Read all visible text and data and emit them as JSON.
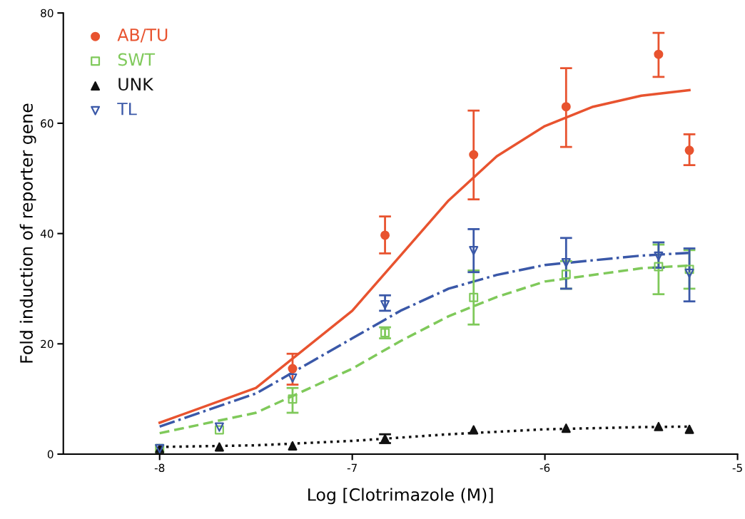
{
  "chart_data": {
    "type": "scatter",
    "xlabel": "Log [Clotrimazole (M)]",
    "ylabel": "Fold induction of reporter gene",
    "xlim": [
      -8.5,
      -5
    ],
    "xticks": [
      -8,
      -7,
      -6,
      -5
    ],
    "ylim": [
      0,
      80
    ],
    "yticks": [
      0,
      20,
      40,
      60,
      80
    ],
    "grid": false,
    "legend": "top left",
    "series": [
      {
        "name": "AB/TU",
        "color": "#e8532f",
        "marker": "circle",
        "x": [
          -7.31,
          -6.83,
          -6.37,
          -5.89,
          -5.41,
          -5.25
        ],
        "values": [
          15.5,
          39.7,
          54.3,
          63,
          72.5,
          55.1
        ],
        "errors": [
          [
            12.6,
            18.2
          ],
          [
            36.4,
            43.1
          ],
          [
            46.2,
            62.3
          ],
          [
            55.7,
            70
          ],
          [
            68.4,
            76.4
          ],
          [
            52.4,
            58
          ]
        ]
      },
      {
        "name": "SWT",
        "color": "#7fc95a",
        "marker": "square",
        "x": [
          -8,
          -7.69,
          -7.31,
          -6.83,
          -6.37,
          -5.89,
          -5.41,
          -5.25
        ],
        "values": [
          1,
          4.4,
          10,
          22,
          28.4,
          32.6,
          34,
          33.5
        ],
        "errors": [
          null,
          null,
          [
            7.5,
            12
          ],
          [
            21,
            23
          ],
          [
            23.5,
            33.3
          ],
          [
            30,
            35
          ],
          [
            29,
            38
          ],
          [
            30,
            37
          ]
        ]
      },
      {
        "name": "UNK",
        "color": "#111111",
        "marker": "triangle",
        "x": [
          -8,
          -7.69,
          -7.31,
          -6.83,
          -6.37,
          -5.89,
          -5.41,
          -5.25
        ],
        "values": [
          1,
          1.3,
          1.5,
          2.8,
          4.4,
          4.7,
          5,
          4.5
        ],
        "errors": [
          null,
          null,
          null,
          [
            2,
            3.6
          ],
          null,
          null,
          null,
          null
        ]
      },
      {
        "name": "TL",
        "color": "#3a58a8",
        "marker": "triangle_down",
        "x": [
          -8,
          -7.69,
          -7.31,
          -6.83,
          -6.37,
          -5.89,
          -5.41,
          -5.25
        ],
        "values": [
          1,
          4.9,
          13.8,
          27.1,
          36.9,
          34.7,
          35.9,
          32.8
        ],
        "errors": [
          null,
          null,
          null,
          [
            26,
            28.8
          ],
          [
            33,
            40.8
          ],
          [
            30,
            39.2
          ],
          [
            33.8,
            38.4
          ],
          [
            27.7,
            37.3
          ]
        ]
      },
      {
        "type": "line",
        "color": "#e8532f",
        "line_style": "solid",
        "x": [
          -8,
          -7.5,
          -7,
          -6.75,
          -6.5,
          -6.25,
          -6,
          -5.75,
          -5.5,
          -5.25
        ],
        "values": [
          5.7,
          12,
          26,
          36,
          46,
          54,
          59.5,
          63,
          65,
          66
        ]
      },
      {
        "type": "line",
        "color": "#7fc95a",
        "line_style": "dashed",
        "x": [
          -8,
          -7.5,
          -7,
          -6.75,
          -6.5,
          -6.25,
          -6,
          -5.5,
          -5.25
        ],
        "values": [
          3.8,
          7.5,
          15.5,
          20.5,
          25,
          28.5,
          31.3,
          33.7,
          34.2
        ]
      },
      {
        "type": "line",
        "color": "#111111",
        "line_style": "dotted",
        "x": [
          -8,
          -7.5,
          -7,
          -6.5,
          -6,
          -5.5,
          -5.25
        ],
        "values": [
          1.3,
          1.6,
          2.4,
          3.6,
          4.5,
          4.9,
          5
        ]
      },
      {
        "type": "line",
        "color": "#3a58a8",
        "line_style": "dashdot",
        "x": [
          -8,
          -7.5,
          -7,
          -6.75,
          -6.5,
          -6.25,
          -6,
          -5.5,
          -5.25
        ],
        "values": [
          5,
          11,
          21,
          26,
          30,
          32.5,
          34.3,
          36,
          36.5
        ]
      }
    ]
  }
}
